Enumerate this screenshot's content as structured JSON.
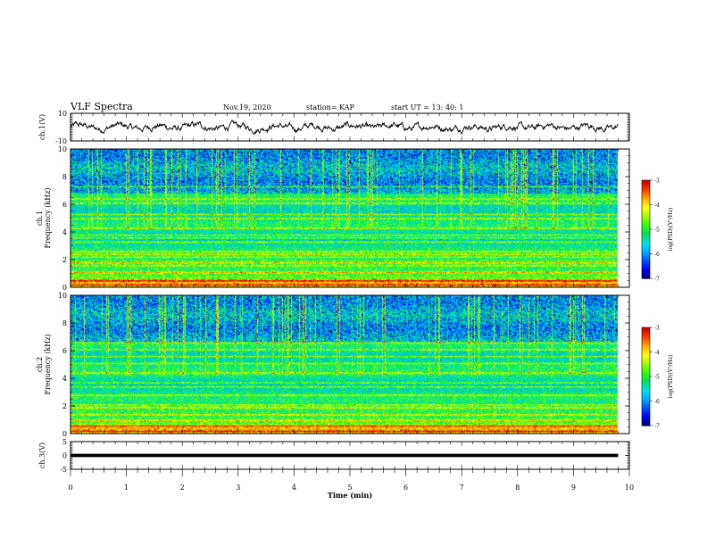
{
  "header": {
    "title": "VLF Spectra",
    "date": "Nov.19, 2020",
    "station": "station= KAP",
    "start_ut": "start  UT =   13: 40: 1"
  },
  "colors": {
    "colormap": [
      "#00007f",
      "#0000ff",
      "#0055ff",
      "#00b0ff",
      "#00e5e5",
      "#00e060",
      "#30ff00",
      "#a0ff00",
      "#ffff00",
      "#ffb000",
      "#ff4000",
      "#d00000",
      "#ffffff"
    ]
  },
  "chart_data": [
    {
      "type": "line",
      "title": "",
      "ylabel": "ch.1(V)",
      "xlabel": "",
      "xlim": [
        0,
        10
      ],
      "ylim": [
        -10,
        10
      ],
      "yticks": [
        "10",
        "-10"
      ],
      "series": [
        {
          "x_range": [
            0,
            9.8
          ],
          "mean": 0.0,
          "amplitude_range": [
            -4,
            4
          ]
        }
      ]
    },
    {
      "type": "heatmap",
      "title": "",
      "ylabel": "ch.1\nFrequency (kHz)",
      "xlim": [
        0,
        10
      ],
      "ylim": [
        0,
        10
      ],
      "yticks": [
        "0",
        "2",
        "4",
        "6",
        "8",
        "10"
      ],
      "x_data_range": [
        0,
        9.8
      ],
      "colorbar": {
        "label": "log(PSD)(V²/Hz)",
        "range": [
          -7,
          -3
        ],
        "ticks": [
          "-3",
          "-4",
          "-5",
          "-6",
          "-7"
        ]
      },
      "intense_bands_khz": [
        0.2,
        0.5,
        1.1,
        1.6,
        1.8,
        2.2,
        2.4,
        2.6,
        3.3,
        3.6,
        3.8,
        4.3,
        5.0,
        5.3,
        6.1,
        6.4,
        7.3
      ],
      "noise_onset_khz": 6.8
    },
    {
      "type": "heatmap",
      "title": "",
      "ylabel": "ch.2\nFrequency (kHz)",
      "xlim": [
        0,
        10
      ],
      "ylim": [
        0,
        10
      ],
      "yticks": [
        "0",
        "2",
        "4",
        "6",
        "8",
        "10"
      ],
      "x_data_range": [
        0,
        9.8
      ],
      "colorbar": {
        "label": "log(PSD)(V²/Hz)",
        "range": [
          -7,
          -3
        ],
        "ticks": [
          "-3",
          "-4",
          "-5",
          "-6",
          "-7"
        ]
      },
      "intense_bands_khz": [
        0.2,
        0.6,
        1.0,
        1.4,
        1.9,
        2.1,
        2.8,
        3.4,
        3.7,
        4.4,
        5.1,
        5.6,
        6.1,
        6.6
      ],
      "noise_onset_khz": 6.6
    },
    {
      "type": "line",
      "title": "",
      "ylabel": "ch.3(V)",
      "xlabel": "Time  (min)",
      "xlim": [
        0,
        10
      ],
      "ylim": [
        -5,
        5
      ],
      "yticks": [
        "5",
        "0",
        "-5"
      ],
      "xticks": [
        "0",
        "1",
        "2",
        "3",
        "4",
        "5",
        "6",
        "7",
        "8",
        "9",
        "10"
      ],
      "series": [
        {
          "x_range": [
            0,
            9.8
          ],
          "value": 0.0,
          "band_thickness": 1.2
        }
      ]
    }
  ]
}
